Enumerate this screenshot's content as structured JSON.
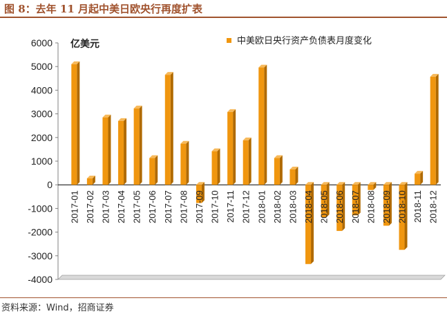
{
  "header": {
    "title": "图 8：去年 11 月起中美日欧央行再度扩表"
  },
  "footer": {
    "source": "资料来源：Wind，招商证券"
  },
  "chart_data": {
    "type": "bar",
    "unit_label": "亿美元",
    "categories": [
      "2017-01",
      "2017-02",
      "2017-03",
      "2017-04",
      "2017-05",
      "2017-06",
      "2017-07",
      "2017-08",
      "2017-09",
      "2017-10",
      "2017-11",
      "2017-12",
      "2018-01",
      "2018-02",
      "2018-03",
      "2018-04",
      "2018-05",
      "2018-06",
      "2018-07",
      "2018-08",
      "2018-09",
      "2018-10",
      "2018-11",
      "2018-12"
    ],
    "series": [
      {
        "name": "中美欧日央行资产负债表月度变化",
        "values": [
          5100,
          270,
          2850,
          2700,
          3230,
          1130,
          4650,
          1740,
          -770,
          1420,
          3080,
          1880,
          4960,
          1130,
          650,
          -3350,
          -1370,
          -1950,
          -1290,
          -220,
          -1730,
          -2750,
          470,
          4570
        ]
      }
    ],
    "ylim": [
      -4000,
      6000
    ],
    "yticks": [
      -4000,
      -3000,
      -2000,
      -1000,
      0,
      1000,
      2000,
      3000,
      4000,
      5000,
      6000
    ],
    "legend_position": "top-right",
    "colors": {
      "bar": "#f0960f",
      "bar_shadow": "#b06a00",
      "axis": "#808080"
    }
  }
}
